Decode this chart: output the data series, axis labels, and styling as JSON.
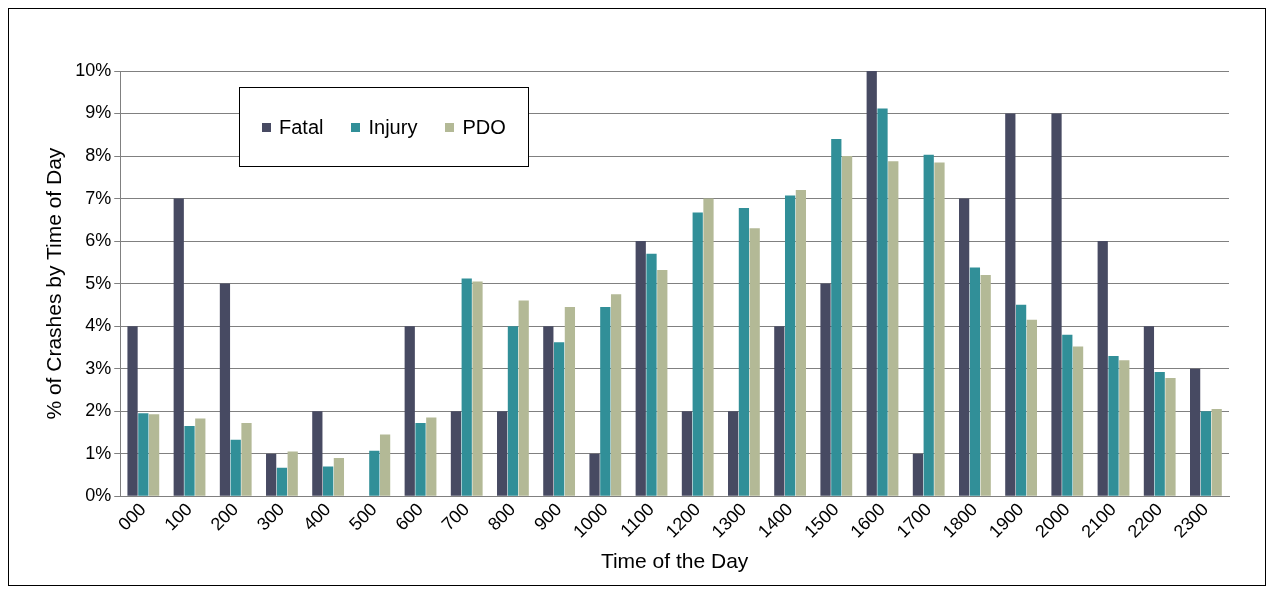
{
  "chart_data": {
    "type": "bar",
    "xlabel": "Time of the Day",
    "ylabel": "% of Crashes by Time of Day",
    "categories": [
      "000",
      "100",
      "200",
      "300",
      "400",
      "500",
      "600",
      "700",
      "800",
      "900",
      "1000",
      "1100",
      "1200",
      "1300",
      "1400",
      "1500",
      "1600",
      "1700",
      "1800",
      "1900",
      "2000",
      "2100",
      "2200",
      "2300"
    ],
    "series": [
      {
        "name": "Fatal",
        "color": "#474a62",
        "values": [
          4,
          7,
          5,
          1,
          2,
          0,
          4,
          2,
          2,
          4,
          1,
          6,
          2,
          2,
          4,
          5,
          10,
          1,
          7,
          9,
          9,
          6,
          4,
          3
        ]
      },
      {
        "name": "Injury",
        "color": "#318f98",
        "values": [
          1.95,
          1.65,
          1.33,
          0.67,
          0.7,
          1.07,
          1.72,
          5.12,
          4.0,
          3.62,
          4.45,
          5.7,
          6.67,
          6.78,
          7.07,
          8.4,
          9.12,
          8.03,
          5.38,
          4.5,
          3.8,
          3.3,
          2.92,
          2.0
        ]
      },
      {
        "name": "PDO",
        "color": "#b3b996",
        "values": [
          1.93,
          1.83,
          1.72,
          1.05,
          0.9,
          1.45,
          1.85,
          5.05,
          4.6,
          4.45,
          4.75,
          5.32,
          7.0,
          6.3,
          7.2,
          8.0,
          7.88,
          7.85,
          5.2,
          4.15,
          3.52,
          3.2,
          2.78,
          2.05
        ]
      }
    ],
    "ylim": [
      0,
      10
    ],
    "yticks": [
      {
        "value": 0,
        "label": "0%"
      },
      {
        "value": 1,
        "label": "1%"
      },
      {
        "value": 2,
        "label": "2%"
      },
      {
        "value": 3,
        "label": "3%"
      },
      {
        "value": 4,
        "label": "4%"
      },
      {
        "value": 5,
        "label": "5%"
      },
      {
        "value": 6,
        "label": "6%"
      },
      {
        "value": 7,
        "label": "7%"
      },
      {
        "value": 8,
        "label": "8%"
      },
      {
        "value": 9,
        "label": "9%"
      },
      {
        "value": 10,
        "label": "10%"
      }
    ],
    "grid": "y",
    "legend": "top left"
  }
}
